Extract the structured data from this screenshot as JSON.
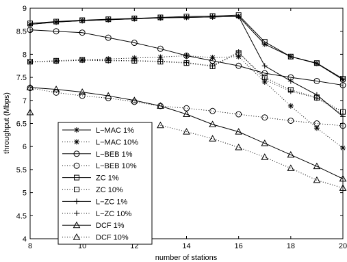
{
  "chart_data": {
    "type": "line",
    "xlabel": "number of stations",
    "ylabel": "throughput (Mbps)",
    "xlim": [
      8,
      20
    ],
    "ylim": [
      4,
      9
    ],
    "x_ticks": [
      "8",
      "10",
      "12",
      "14",
      "16",
      "18",
      "20"
    ],
    "y_ticks": [
      "4",
      "4.5",
      "5",
      "5.5",
      "6",
      "6.5",
      "7",
      "7.5",
      "8",
      "8.5",
      "9"
    ],
    "grid": false,
    "legend_placement": "bottom-left",
    "x": [
      8,
      9,
      10,
      11,
      12,
      13,
      14,
      15,
      16,
      17,
      18,
      19,
      20
    ],
    "series": [
      {
        "name": "L−MAC 1%",
        "marker": "asterisk",
        "line": "solid",
        "values": [
          8.65,
          8.7,
          8.73,
          8.75,
          8.77,
          8.79,
          8.8,
          8.81,
          8.82,
          8.22,
          7.95,
          7.8,
          7.45
        ]
      },
      {
        "name": "L−MAC 10%",
        "marker": "asterisk",
        "line": "dotted",
        "values": [
          7.83,
          7.86,
          7.88,
          7.9,
          7.92,
          7.94,
          7.97,
          7.93,
          7.95,
          7.4,
          6.88,
          6.4,
          5.97
        ]
      },
      {
        "name": "L−BEB 1%",
        "marker": "circle",
        "line": "solid",
        "values": [
          8.53,
          8.5,
          8.47,
          8.36,
          8.25,
          8.12,
          7.97,
          7.86,
          7.75,
          7.59,
          7.5,
          7.42,
          7.33
        ]
      },
      {
        "name": "L−BEB 10%",
        "marker": "circle",
        "line": "dotted",
        "values": [
          7.27,
          7.17,
          7.1,
          7.05,
          6.97,
          6.88,
          6.83,
          6.77,
          6.7,
          6.63,
          6.56,
          6.5,
          6.45
        ]
      },
      {
        "name": "ZC 1%",
        "marker": "square",
        "line": "solid",
        "values": [
          8.67,
          8.71,
          8.74,
          8.76,
          8.78,
          8.8,
          8.82,
          8.83,
          8.85,
          8.27,
          7.95,
          7.81,
          7.47
        ]
      },
      {
        "name": "ZC 10%",
        "marker": "square",
        "line": "dotted",
        "values": [
          7.84,
          7.86,
          7.88,
          7.87,
          7.86,
          7.84,
          7.81,
          7.74,
          8.03,
          7.5,
          7.23,
          7.06,
          6.75
        ]
      },
      {
        "name": "L−ZC 1%",
        "marker": "plus",
        "line": "solid",
        "values": [
          8.65,
          8.7,
          8.73,
          8.75,
          8.77,
          8.79,
          8.8,
          8.81,
          8.82,
          7.75,
          7.42,
          7.12,
          6.65
        ]
      },
      {
        "name": "L−ZC 10%",
        "marker": "plus",
        "line": "dotted",
        "values": [
          7.83,
          7.85,
          7.87,
          7.86,
          7.86,
          7.85,
          7.82,
          7.75,
          8.05,
          7.45,
          7.2,
          7.05,
          6.7
        ]
      },
      {
        "name": "DCF 1%",
        "marker": "triangle",
        "line": "solid",
        "values": [
          7.28,
          7.24,
          7.18,
          7.1,
          7.0,
          6.88,
          6.7,
          6.48,
          6.32,
          6.07,
          5.82,
          5.57,
          5.3
        ]
      },
      {
        "name": "DCF 10%",
        "marker": "triangle",
        "line": "dotted",
        "values": [
          6.74,
          null,
          null,
          null,
          null,
          6.46,
          6.32,
          6.17,
          5.98,
          5.77,
          5.53,
          5.27,
          5.1
        ]
      }
    ]
  }
}
